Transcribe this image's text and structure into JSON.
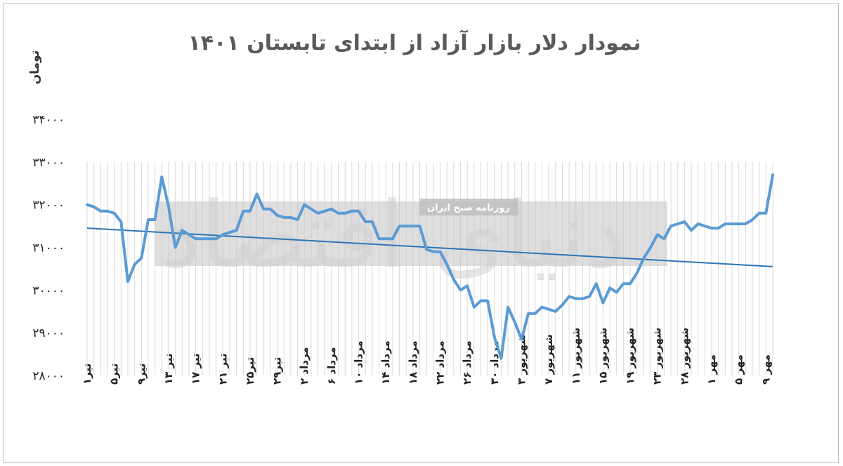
{
  "chart_data": {
    "type": "line",
    "title": "نمودار دلار بازار آزاد از ابتدای تابستان ۱۴۰۱",
    "ylabel": "تومان",
    "ylim": [
      28000,
      34000
    ],
    "yticks": [
      28000,
      29000,
      30000,
      31000,
      32000,
      33000,
      34000
    ],
    "ytick_labels": [
      "۲۸۰۰۰",
      "۲۹۰۰۰",
      "۳۰۰۰۰",
      "۳۱۰۰۰",
      "۳۲۰۰۰",
      "۳۳۰۰۰",
      "۳۴۰۰۰"
    ],
    "x_tick_labels": [
      "تیر۱",
      "تیر۵",
      "تیر۹",
      "تیر ۱۳",
      "تیر ۱۷",
      "تیر ۲۱",
      "تیر۲۵",
      "تیر۲۹",
      "مرداد ۲",
      "مرداد ۶",
      "مرداد ۱۰",
      "مرداد ۱۴",
      "مرداد ۱۸",
      "مرداد ۲۲",
      "مرداد ۲۶",
      "مرداد ۳۰",
      "شهریور ۳",
      "شهریور ۷",
      "شهریور ۱۱",
      "شهریور ۱۵",
      "شهریور ۱۹",
      "شهریور ۲۳",
      "شهریور ۲۸",
      "مهر ۱",
      "مهر ۵",
      "مهر ۹"
    ],
    "grid": true,
    "series": [
      {
        "values": [
          32000,
          31950,
          31850,
          31850,
          31800,
          31600,
          30200,
          30600,
          30750,
          31650,
          31650,
          32650,
          31950,
          31000,
          31400,
          31300,
          31200,
          31200,
          31200,
          31200,
          31300,
          31350,
          31400,
          31850,
          31850,
          32250,
          31900,
          31900,
          31750,
          31700,
          31700,
          31650,
          32000,
          31900,
          31800,
          31850,
          31900,
          31800,
          31800,
          31850,
          31850,
          31600,
          31600,
          31200,
          31200,
          31200,
          31500,
          31500,
          31500,
          31500,
          30950,
          30900,
          30900,
          30600,
          30250,
          30000,
          30100,
          29600,
          29750,
          29750,
          28900,
          28400,
          29600,
          29250,
          28850,
          29450,
          29450,
          29600,
          29550,
          29500,
          29650,
          29850,
          29800,
          29800,
          29850,
          30150,
          29700,
          30050,
          29950,
          30150,
          30150,
          30400,
          30750,
          31000,
          31300,
          31200,
          31500,
          31550,
          31600,
          31400,
          31550,
          31500,
          31450,
          31450,
          31550,
          31550,
          31550,
          31550,
          31650,
          31800,
          31800,
          32700
        ],
        "color": "#5b9bd5"
      },
      {
        "type": "trendline",
        "values": [
          31450,
          30550
        ],
        "color": "#2e75b6"
      }
    ]
  },
  "watermark": {
    "text": "روزنامه صبح ایران",
    "logo_text": "دنیای اقتصاد"
  }
}
